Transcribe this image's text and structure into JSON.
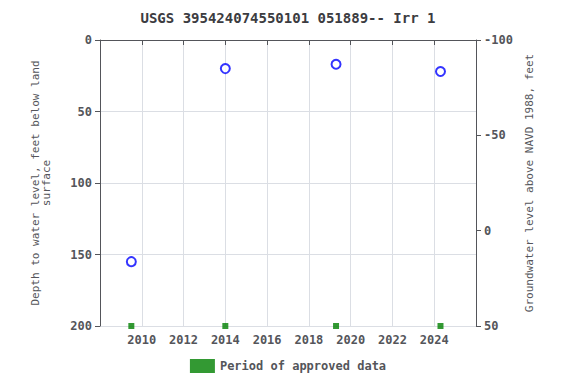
{
  "chart_data": {
    "type": "scatter",
    "title": "USGS 395424074550101 051889-- Irr 1",
    "ylabel": "Depth to water level, feet below land\nsurface",
    "y2label": "Groundwater level above NAVD 1988, feet",
    "x": [
      2009.5,
      2014.0,
      2019.3,
      2024.3
    ],
    "series": [
      {
        "color": "#0000ff",
        "marker": "circle_open",
        "values": [
          155,
          20,
          17,
          22
        ]
      },
      {
        "name": "Period of approved data",
        "color": "#008000",
        "marker": "square",
        "values": [
          200,
          200,
          200,
          200
        ]
      }
    ],
    "xlim": [
      2008,
      2026
    ],
    "xticks": [
      2010,
      2012,
      2014,
      2016,
      2018,
      2020,
      2022,
      2024
    ],
    "ylim": [
      200,
      0
    ],
    "yticks": [
      0,
      50,
      100,
      150,
      200
    ],
    "y2lim": [
      50,
      -100
    ],
    "y2ticks": [
      50,
      0,
      -50,
      -100
    ],
    "grid": true,
    "legend": "bottom"
  }
}
